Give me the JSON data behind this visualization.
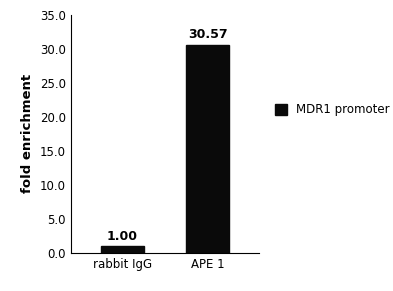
{
  "categories": [
    "rabbit IgG",
    "APE 1"
  ],
  "values": [
    1.0,
    30.57
  ],
  "bar_color": "#0a0a0a",
  "bar_labels": [
    "1.00",
    "30.57"
  ],
  "ylabel": "fold enrichment",
  "ylim": [
    0,
    35
  ],
  "yticks": [
    0.0,
    5.0,
    10.0,
    15.0,
    20.0,
    25.0,
    30.0,
    35.0
  ],
  "legend_label": "MDR1 promoter",
  "legend_color": "#0a0a0a",
  "background_color": "#ffffff",
  "bar_width": 0.5,
  "label_fontsize": 8.5,
  "ylabel_fontsize": 9.5,
  "tick_fontsize": 8.5,
  "legend_fontsize": 8.5,
  "annotation_fontsize": 9
}
